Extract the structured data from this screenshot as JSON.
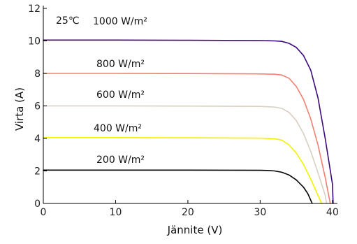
{
  "chart_data": {
    "type": "line",
    "title": "",
    "xlabel": "Jännite (V)",
    "ylabel": "Virta (A)",
    "xlim": [
      0,
      40.5
    ],
    "ylim": [
      0,
      12
    ],
    "xticks": [
      0,
      10,
      20,
      30,
      40
    ],
    "yticks": [
      0,
      2,
      4,
      6,
      8,
      10,
      12
    ],
    "grid": false,
    "legend": "none",
    "temperature_label": "25℃",
    "series": [
      {
        "name": "1000 W/m²",
        "color": "#3a0a7a",
        "x": [
          0,
          10,
          20,
          30,
          32,
          33,
          34,
          35,
          36,
          37,
          38,
          39,
          40,
          40.1
        ],
        "y": [
          10.05,
          10.05,
          10.04,
          10.02,
          10.0,
          9.97,
          9.85,
          9.6,
          9.1,
          8.2,
          6.5,
          4.0,
          1.2,
          0
        ]
      },
      {
        "name": "800 W/m²",
        "color": "#f08070",
        "x": [
          0,
          10,
          20,
          30,
          32,
          33,
          34,
          35,
          36,
          37,
          38,
          39,
          39.7
        ],
        "y": [
          8.0,
          8.0,
          7.99,
          7.97,
          7.95,
          7.9,
          7.7,
          7.2,
          6.4,
          5.2,
          3.6,
          1.6,
          0
        ]
      },
      {
        "name": "600 W/m²",
        "color": "#d8d0c0",
        "x": [
          0,
          10,
          20,
          30,
          32,
          33,
          34,
          35,
          36,
          37,
          38,
          39,
          39.2
        ],
        "y": [
          6.0,
          6.0,
          5.99,
          5.97,
          5.93,
          5.85,
          5.6,
          5.1,
          4.3,
          3.2,
          1.9,
          0.5,
          0
        ]
      },
      {
        "name": "400 W/m²",
        "color": "#f2f200",
        "x": [
          0,
          10,
          20,
          30,
          32,
          33,
          34,
          35,
          36,
          37,
          38,
          38.5
        ],
        "y": [
          4.05,
          4.05,
          4.04,
          4.02,
          3.98,
          3.9,
          3.6,
          3.1,
          2.4,
          1.5,
          0.5,
          0
        ]
      },
      {
        "name": "200 W/m²",
        "color": "#000000",
        "x": [
          0,
          10,
          20,
          30,
          31,
          32,
          33,
          34,
          35,
          36,
          36.6,
          37.2
        ],
        "y": [
          2.05,
          2.05,
          2.05,
          2.04,
          2.03,
          2.0,
          1.92,
          1.75,
          1.45,
          1.0,
          0.6,
          0
        ]
      }
    ]
  }
}
